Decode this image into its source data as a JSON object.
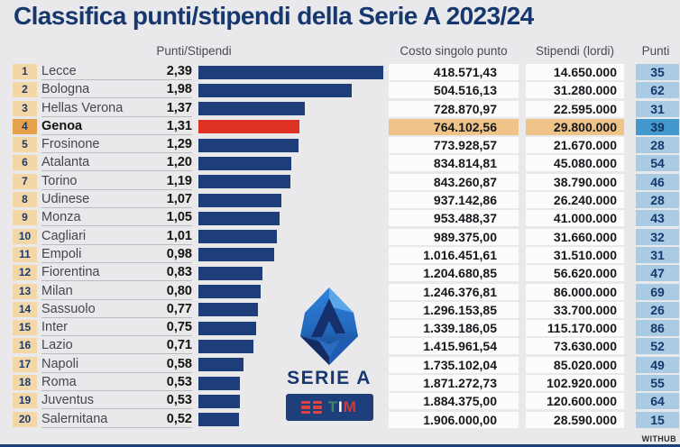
{
  "title": "Classifica punti/stipendi della Serie A 2023/24",
  "headers": {
    "ratio": "Punti/Stipendi",
    "cost": "Costo singolo punto",
    "salary": "Stipendi (lordi)",
    "points": "Punti"
  },
  "logo": {
    "league": "SERIE A",
    "sponsor_t": "T",
    "sponsor_i": "I",
    "sponsor_m": "M"
  },
  "watermark": "WITHUB",
  "colors": {
    "background": "#e9e9ec",
    "title": "#17386e",
    "bar": "#1d3e78",
    "bar_highlight": "#de3226",
    "rank_bg": "#f4d7a6",
    "rank_bg_highlight": "#e8a14b",
    "cell_bg": "#fcfcfd",
    "cell_bg_highlight": "#eec488",
    "points_bg": "#a9cbe3",
    "points_bg_highlight": "#4398cd"
  },
  "chart_data": {
    "type": "bar",
    "orientation": "horizontal",
    "title": "Classifica punti/stipendi della Serie A 2023/24",
    "value_label": "Punti/Stipendi",
    "categories": [
      "Lecce",
      "Bologna",
      "Hellas Verona",
      "Genoa",
      "Frosinone",
      "Atalanta",
      "Torino",
      "Udinese",
      "Monza",
      "Cagliari",
      "Empoli",
      "Fiorentina",
      "Milan",
      "Sassuolo",
      "Inter",
      "Lazio",
      "Napoli",
      "Roma",
      "Juventus",
      "Salernitana"
    ],
    "values": [
      2.39,
      1.98,
      1.37,
      1.31,
      1.29,
      1.2,
      1.19,
      1.07,
      1.05,
      1.01,
      0.98,
      0.83,
      0.8,
      0.77,
      0.75,
      0.71,
      0.58,
      0.53,
      0.53,
      0.52
    ],
    "xmax": 2.39,
    "highlight_category": "Genoa",
    "extra_columns": {
      "Costo singolo punto": [
        "418.571,43",
        "504.516,13",
        "728.870,97",
        "764.102,56",
        "773.928,57",
        "834.814,81",
        "843.260,87",
        "937.142,86",
        "953.488,37",
        "989.375,00",
        "1.016.451,61",
        "1.204.680,85",
        "1.246.376,81",
        "1.296.153,85",
        "1.339.186,05",
        "1.415.961,54",
        "1.735.102,04",
        "1.871.272,73",
        "1.884.375,00",
        "1.906.000,00"
      ],
      "Stipendi (lordi)": [
        "14.650.000",
        "31.280.000",
        "22.595.000",
        "29.800.000",
        "21.670.000",
        "45.080.000",
        "38.790.000",
        "26.240.000",
        "41.000.000",
        "31.660.000",
        "31.510.000",
        "56.620.000",
        "86.000.000",
        "33.700.000",
        "115.170.000",
        "73.630.000",
        "85.020.000",
        "102.920.000",
        "120.600.000",
        "28.590.000"
      ],
      "Punti": [
        35,
        62,
        31,
        39,
        28,
        54,
        46,
        28,
        43,
        32,
        31,
        47,
        69,
        26,
        86,
        52,
        49,
        55,
        64,
        15
      ]
    }
  },
  "rows": [
    {
      "rank": "1",
      "team": "Lecce",
      "ratio": "2,39",
      "ratio_value": 2.39,
      "cost": "418.571,43",
      "salary": "14.650.000",
      "points": "35",
      "highlight": false
    },
    {
      "rank": "2",
      "team": "Bologna",
      "ratio": "1,98",
      "ratio_value": 1.98,
      "cost": "504.516,13",
      "salary": "31.280.000",
      "points": "62",
      "highlight": false
    },
    {
      "rank": "3",
      "team": "Hellas Verona",
      "ratio": "1,37",
      "ratio_value": 1.37,
      "cost": "728.870,97",
      "salary": "22.595.000",
      "points": "31",
      "highlight": false
    },
    {
      "rank": "4",
      "team": "Genoa",
      "ratio": "1,31",
      "ratio_value": 1.31,
      "cost": "764.102,56",
      "salary": "29.800.000",
      "points": "39",
      "highlight": true
    },
    {
      "rank": "5",
      "team": "Frosinone",
      "ratio": "1,29",
      "ratio_value": 1.29,
      "cost": "773.928,57",
      "salary": "21.670.000",
      "points": "28",
      "highlight": false
    },
    {
      "rank": "6",
      "team": "Atalanta",
      "ratio": "1,20",
      "ratio_value": 1.2,
      "cost": "834.814,81",
      "salary": "45.080.000",
      "points": "54",
      "highlight": false
    },
    {
      "rank": "7",
      "team": "Torino",
      "ratio": "1,19",
      "ratio_value": 1.19,
      "cost": "843.260,87",
      "salary": "38.790.000",
      "points": "46",
      "highlight": false
    },
    {
      "rank": "8",
      "team": "Udinese",
      "ratio": "1,07",
      "ratio_value": 1.07,
      "cost": "937.142,86",
      "salary": "26.240.000",
      "points": "28",
      "highlight": false
    },
    {
      "rank": "9",
      "team": "Monza",
      "ratio": "1,05",
      "ratio_value": 1.05,
      "cost": "953.488,37",
      "salary": "41.000.000",
      "points": "43",
      "highlight": false
    },
    {
      "rank": "10",
      "team": "Cagliari",
      "ratio": "1,01",
      "ratio_value": 1.01,
      "cost": "989.375,00",
      "salary": "31.660.000",
      "points": "32",
      "highlight": false
    },
    {
      "rank": "11",
      "team": "Empoli",
      "ratio": "0,98",
      "ratio_value": 0.98,
      "cost": "1.016.451,61",
      "salary": "31.510.000",
      "points": "31",
      "highlight": false
    },
    {
      "rank": "12",
      "team": "Fiorentina",
      "ratio": "0,83",
      "ratio_value": 0.83,
      "cost": "1.204.680,85",
      "salary": "56.620.000",
      "points": "47",
      "highlight": false
    },
    {
      "rank": "13",
      "team": "Milan",
      "ratio": "0,80",
      "ratio_value": 0.8,
      "cost": "1.246.376,81",
      "salary": "86.000.000",
      "points": "69",
      "highlight": false
    },
    {
      "rank": "14",
      "team": "Sassuolo",
      "ratio": "0,77",
      "ratio_value": 0.77,
      "cost": "1.296.153,85",
      "salary": "33.700.000",
      "points": "26",
      "highlight": false
    },
    {
      "rank": "15",
      "team": "Inter",
      "ratio": "0,75",
      "ratio_value": 0.75,
      "cost": "1.339.186,05",
      "salary": "115.170.000",
      "points": "86",
      "highlight": false
    },
    {
      "rank": "16",
      "team": "Lazio",
      "ratio": "0,71",
      "ratio_value": 0.71,
      "cost": "1.415.961,54",
      "salary": "73.630.000",
      "points": "52",
      "highlight": false
    },
    {
      "rank": "17",
      "team": "Napoli",
      "ratio": "0,58",
      "ratio_value": 0.58,
      "cost": "1.735.102,04",
      "salary": "85.020.000",
      "points": "49",
      "highlight": false
    },
    {
      "rank": "18",
      "team": "Roma",
      "ratio": "0,53",
      "ratio_value": 0.53,
      "cost": "1.871.272,73",
      "salary": "102.920.000",
      "points": "55",
      "highlight": false
    },
    {
      "rank": "19",
      "team": "Juventus",
      "ratio": "0,53",
      "ratio_value": 0.53,
      "cost": "1.884.375,00",
      "salary": "120.600.000",
      "points": "64",
      "highlight": false
    },
    {
      "rank": "20",
      "team": "Salernitana",
      "ratio": "0,52",
      "ratio_value": 0.52,
      "cost": "1.906.000,00",
      "salary": "28.590.000",
      "points": "15",
      "highlight": false
    }
  ]
}
